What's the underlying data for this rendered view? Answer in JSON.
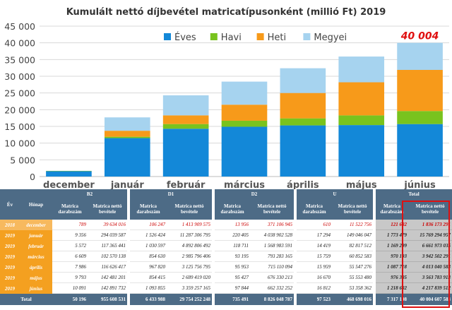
{
  "chart_data": {
    "type": "bar",
    "title": "Kumulált nettó díjbevétel matricatípusonként (millió Ft) 2019",
    "categories": [
      "december",
      "január",
      "február",
      "március",
      "április",
      "május",
      "június"
    ],
    "series": [
      {
        "name": "Éves",
        "color": "#1388d8",
        "values": [
          1600,
          11500,
          14300,
          14900,
          15300,
          15400,
          15700
        ]
      },
      {
        "name": "Havi",
        "color": "#79c31e",
        "values": [
          100,
          400,
          1400,
          1800,
          2100,
          2900,
          3900
        ]
      },
      {
        "name": "Heti",
        "color": "#f79a1a",
        "values": [
          0,
          1800,
          2600,
          4800,
          7600,
          9900,
          12300
        ]
      },
      {
        "name": "Megyei",
        "color": "#a6d3ef",
        "values": [
          0,
          4000,
          6000,
          6900,
          7400,
          7700,
          8104
        ]
      }
    ],
    "yticks": [
      "0",
      "5 000",
      "10 000",
      "15 000",
      "20 000",
      "25 000",
      "30 000",
      "35 000",
      "40 000",
      "45 000"
    ],
    "ylim": [
      0,
      45000
    ],
    "grid": true,
    "legend": "top-right",
    "annotation": {
      "text": "40 004",
      "category": "június",
      "color": "#e01010"
    }
  },
  "table": {
    "headers": {
      "year": "Év",
      "month": "Hónap",
      "groups": [
        "B2",
        "D1",
        "D2",
        "U",
        "Total"
      ],
      "count": "Matrica darabszám",
      "revenue": "Matrica nettó bevétele"
    },
    "rows": [
      {
        "year": "2018",
        "month": "december",
        "cells": [
          "789",
          "39 634 016",
          "106 247",
          "1 413 909 575",
          "13 956",
          "371 106 945",
          "610",
          "11 522 756",
          "121 602",
          "1 836 173 291"
        ]
      },
      {
        "year": "2019",
        "month": "január",
        "cells": [
          "9 356",
          "294 039 587",
          "1 526 424",
          "11 287 306 795",
          "220 405",
          "4 038 902 528",
          "17 294",
          "149 046 047",
          "1 773 479",
          "15 769 294 957"
        ]
      },
      {
        "year": "2019",
        "month": "február",
        "cells": [
          "5 572",
          "117 365 441",
          "1 030 597",
          "4 892 806 492",
          "118 711",
          "1 568 983 591",
          "14 419",
          "82 817 512",
          "1 169 299",
          "6 661 973 035"
        ]
      },
      {
        "year": "2019",
        "month": "március",
        "cells": [
          "6 609",
          "102 570 138",
          "854 630",
          "2 985 796 406",
          "93 195",
          "793 283 165",
          "15 759",
          "60 852 583",
          "970 193",
          "3 942 502 291"
        ]
      },
      {
        "year": "2019",
        "month": "április",
        "cells": [
          "7 986",
          "116 626 417",
          "967 820",
          "3 125 756 795",
          "95 953",
          "715 110 094",
          "15 959",
          "55 547 276",
          "1 087 718",
          "4 013 040 583"
        ]
      },
      {
        "year": "2019",
        "month": "május",
        "cells": [
          "9 793",
          "142 481 201",
          "854 415",
          "2 689 419 020",
          "95 427",
          "676 330 213",
          "16 670",
          "55 553 480",
          "976 305",
          "3 563 783 913"
        ]
      },
      {
        "year": "2019",
        "month": "június",
        "cells": [
          "10 091",
          "142 891 732",
          "1 093 855",
          "3 359 257 165",
          "97 844",
          "662 332 252",
          "16 812",
          "53 358 362",
          "1 218 602",
          "4 217 839 512"
        ]
      }
    ],
    "total": {
      "label": "Total",
      "cells": [
        "50 196",
        "955 608 531",
        "6 433 988",
        "29 754 252 248",
        "735 491",
        "8 826 048 787",
        "97 523",
        "468 698 016",
        "7 317 198",
        "40 004 607 583"
      ]
    }
  }
}
